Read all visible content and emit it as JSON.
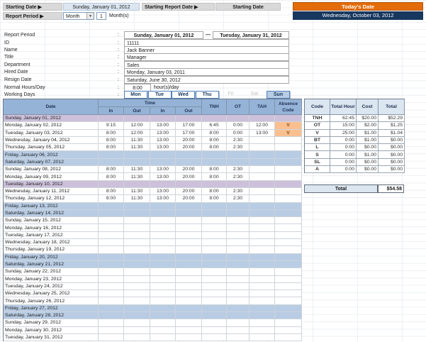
{
  "header": {
    "starting_date_label": "Starting Date ▶",
    "starting_date_value": "Sunday, January 01, 2012",
    "starting_report_date_label": "Starting Report Date ▶",
    "starting_report_date_value": "Starting Date",
    "todays_date_label": "Today's Date",
    "todays_date_value": "Wednesday, October 03, 2012",
    "report_period_label": "Report Period ▶",
    "report_period_unit": "Month",
    "report_period_count": "1",
    "report_period_suffix": "Month(s)"
  },
  "employee": {
    "colon": ":",
    "report_period": {
      "label": "Report Period",
      "start": "Sunday, January 01, 2012",
      "separator": "—",
      "end": "Tuesday, January 31, 2012"
    },
    "fields": [
      {
        "label": "ID",
        "value": "11111"
      },
      {
        "label": "Name",
        "value": "Jack Banner"
      },
      {
        "label": "Title",
        "value": "Manager"
      },
      {
        "label": "Department",
        "value": "Sales"
      },
      {
        "label": "Hired Date",
        "value": "Monday, January 03, 2011"
      },
      {
        "label": "Resign Date",
        "value": "Saturday, June 30, 2012"
      }
    ],
    "normal_hours": {
      "label": "Normal Hours/Day",
      "value": "8:00",
      "suffix": "hour(s)/day"
    },
    "working_days": {
      "label": "Working Days",
      "days": [
        {
          "label": "Mon",
          "state": "selected"
        },
        {
          "label": "Tue",
          "state": "selected"
        },
        {
          "label": "Wed",
          "state": "selected"
        },
        {
          "label": "Thu",
          "state": "selected"
        },
        {
          "label": "Fri",
          "state": "unselected"
        },
        {
          "label": "Sat",
          "state": "unselected"
        },
        {
          "label": "Sun",
          "state": "selected-alt"
        }
      ]
    }
  },
  "attendance_table": {
    "headers": {
      "date": "Date",
      "time": "Time",
      "in": "In",
      "out": "Out",
      "tnh": "TNH",
      "ot": "OT",
      "tah": "TAH",
      "absence": "Absence Code"
    },
    "rows": [
      {
        "date": "Sunday, January 01, 2012",
        "type": "holiday"
      },
      {
        "date": "Monday, January 02, 2012",
        "type": "work",
        "in1": "9:15",
        "out1": "12:00",
        "in2": "13:00",
        "out2": "17:00",
        "tnh": "6:45",
        "ot": "0:00",
        "tah": "12:00",
        "code": "V"
      },
      {
        "date": "Tuesday, January 03, 2012",
        "type": "work",
        "in1": "8:00",
        "out1": "12:00",
        "in2": "13:00",
        "out2": "17:00",
        "tnh": "8:00",
        "ot": "0:00",
        "tah": "13:00",
        "code": "V"
      },
      {
        "date": "Wednesday, January 04, 2012",
        "type": "work",
        "in1": "8:00",
        "out1": "11:30",
        "in2": "13:00",
        "out2": "20:00",
        "tnh": "8:00",
        "ot": "2:30"
      },
      {
        "date": "Thursday, January 05, 2012",
        "type": "work",
        "in1": "8:00",
        "out1": "11:30",
        "in2": "13:00",
        "out2": "20:00",
        "tnh": "8:00",
        "ot": "2:30"
      },
      {
        "date": "Friday, January 06, 2012",
        "type": "weekend"
      },
      {
        "date": "Saturday, January 07, 2012",
        "type": "weekend"
      },
      {
        "date": "Sunday, January 08, 2012",
        "type": "work",
        "in1": "8:00",
        "out1": "11:30",
        "in2": "13:00",
        "out2": "20:00",
        "tnh": "8:00",
        "ot": "2:30"
      },
      {
        "date": "Monday, January 09, 2012",
        "type": "work",
        "in1": "8:00",
        "out1": "11:30",
        "in2": "13:00",
        "out2": "20:00",
        "tnh": "8:00",
        "ot": "2:30"
      },
      {
        "date": "Tuesday, January 10, 2012",
        "type": "holiday"
      },
      {
        "date": "Wednesday, January 11, 2012",
        "type": "work",
        "in1": "8:00",
        "out1": "11:30",
        "in2": "13:00",
        "out2": "20:00",
        "tnh": "8:00",
        "ot": "2:30"
      },
      {
        "date": "Thursday, January 12, 2012",
        "type": "work",
        "in1": "8:00",
        "out1": "11:30",
        "in2": "13:00",
        "out2": "20:00",
        "tnh": "8:00",
        "ot": "2:30"
      },
      {
        "date": "Friday, January 13, 2012",
        "type": "weekend"
      },
      {
        "date": "Saturday, January 14, 2012",
        "type": "weekend"
      },
      {
        "date": "Sunday, January 15, 2012",
        "type": "work"
      },
      {
        "date": "Monday, January 16, 2012",
        "type": "work"
      },
      {
        "date": "Tuesday, January 17, 2012",
        "type": "work"
      },
      {
        "date": "Wednesday, January 18, 2012",
        "type": "work"
      },
      {
        "date": "Thursday, January 19, 2012",
        "type": "work"
      },
      {
        "date": "Friday, January 20, 2012",
        "type": "weekend"
      },
      {
        "date": "Saturday, January 21, 2012",
        "type": "weekend"
      },
      {
        "date": "Sunday, January 22, 2012",
        "type": "work"
      },
      {
        "date": "Monday, January 23, 2012",
        "type": "work"
      },
      {
        "date": "Tuesday, January 24, 2012",
        "type": "work"
      },
      {
        "date": "Wednesday, January 25, 2012",
        "type": "work"
      },
      {
        "date": "Thursday, January 26, 2012",
        "type": "work"
      },
      {
        "date": "Friday, January 27, 2012",
        "type": "weekend"
      },
      {
        "date": "Saturday, January 28, 2012",
        "type": "weekend"
      },
      {
        "date": "Sunday, January 29, 2012",
        "type": "work"
      },
      {
        "date": "Monday, January 30, 2012",
        "type": "work"
      },
      {
        "date": "Tuesday, January 31, 2012",
        "type": "work"
      }
    ]
  },
  "summary_table": {
    "headers": [
      "Code",
      "Total Hour",
      "Cost",
      "Total"
    ],
    "rows": [
      {
        "code": "TNH",
        "hours": "62:45",
        "cost": "$20.00",
        "total": "$52.29"
      },
      {
        "code": "OT",
        "hours": "15:00",
        "cost": "$2.00",
        "total": "$1.25"
      },
      {
        "code": "V",
        "hours": "25:00",
        "cost": "$1.00",
        "total": "$1.04"
      },
      {
        "code": "BT",
        "hours": "0:00",
        "cost": "$1.00",
        "total": "$0.00"
      },
      {
        "code": "L",
        "hours": "0:00",
        "cost": "$0.00",
        "total": "$0.00"
      },
      {
        "code": "S",
        "hours": "0:00",
        "cost": "$1.00",
        "total": "$0.00"
      },
      {
        "code": "SL",
        "hours": "0:00",
        "cost": "$0.00",
        "total": "$0.00"
      },
      {
        "code": "A",
        "hours": "0:00",
        "cost": "$0.00",
        "total": "$0.00"
      }
    ],
    "grand_total": {
      "label": "Total",
      "value": "$54.58"
    }
  },
  "colors": {
    "accent_orange": "#E36C0A",
    "navy": "#17375E",
    "table_header_blue": "#95B3D7",
    "weekend_row": "#B8CCE4",
    "holiday_row": "#CCC0DA",
    "absence_highlight": "#FABF8F",
    "light_blue_cell": "#DCE6F1",
    "label_gray": "#D9D9D9"
  }
}
